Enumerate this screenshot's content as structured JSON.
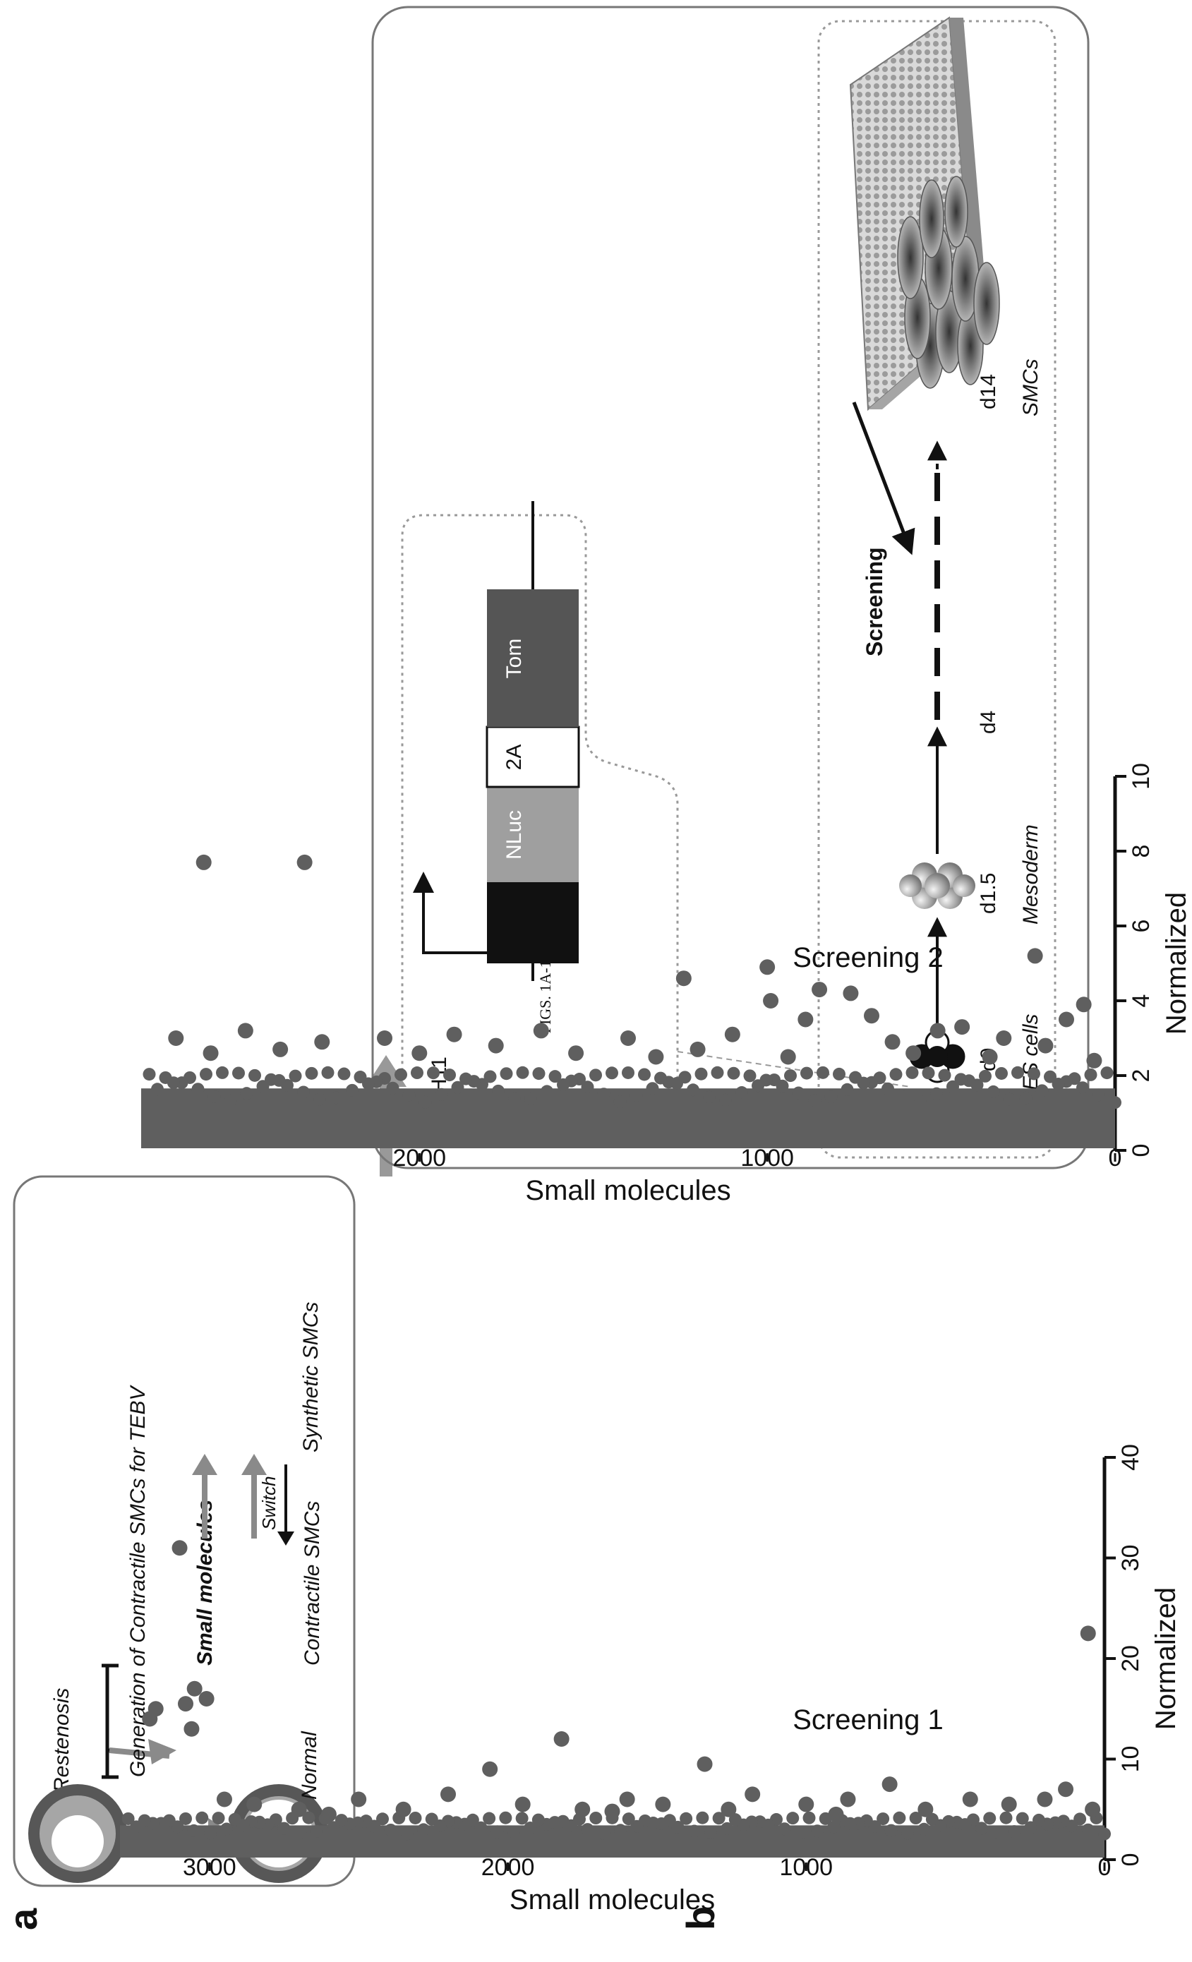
{
  "figure_title": "FIGS. 1A-1C",
  "panel_a": {
    "label": "a",
    "left_box": {
      "restenosis": "Restenosis",
      "normal": "Normal",
      "generation": "Generation of Contractile SMCs for TEBV",
      "small_molecules": "Small molecules",
      "contractile": "Contractile SMCs",
      "switch": "Switch",
      "synthetic": "Synthetic SMCs"
    },
    "right_box": {
      "gene": "MYH11",
      "nluc": "NLuc",
      "p2a": "2A",
      "tom": "Tom",
      "screening": "Screening",
      "stages": [
        {
          "day": "d0",
          "name": "ES cells"
        },
        {
          "day": "d1.5",
          "name": "Mesoderm"
        },
        {
          "day": "d4",
          "name": ""
        },
        {
          "day": "d14",
          "name": "SMCs"
        }
      ]
    }
  },
  "panel_b": {
    "label": "b"
  },
  "chart_data": [
    {
      "type": "scatter",
      "title": "Screening 1",
      "xlabel": "Small molecules",
      "ylabel": "Normalized",
      "xlim": [
        0,
        3300
      ],
      "ylim": [
        0,
        40
      ],
      "xticks": [
        0,
        1000,
        2000,
        3000
      ],
      "yticks": [
        0,
        10,
        20,
        30,
        40
      ],
      "color": "#5f5f5f",
      "baseline_band": [
        0,
        3.2
      ],
      "points": [
        [
          3100,
          31
        ],
        [
          3050,
          17
        ],
        [
          3010,
          16
        ],
        [
          3080,
          15.5
        ],
        [
          3180,
          15
        ],
        [
          3060,
          13
        ],
        [
          3200,
          14
        ],
        [
          1820,
          12
        ],
        [
          2060,
          9
        ],
        [
          1340,
          9.5
        ],
        [
          720,
          7.5
        ],
        [
          55,
          22.5
        ],
        [
          130,
          7
        ],
        [
          40,
          5
        ],
        [
          200,
          6
        ],
        [
          320,
          5.5
        ],
        [
          450,
          6
        ],
        [
          600,
          5
        ],
        [
          860,
          6
        ],
        [
          1000,
          5.5
        ],
        [
          1180,
          6.5
        ],
        [
          1260,
          5
        ],
        [
          1480,
          5.5
        ],
        [
          1600,
          6
        ],
        [
          1750,
          5
        ],
        [
          1950,
          5.5
        ],
        [
          2200,
          6.5
        ],
        [
          2350,
          5
        ],
        [
          2500,
          6
        ],
        [
          2700,
          5
        ],
        [
          2850,
          5.5
        ],
        [
          2950,
          6
        ],
        [
          900,
          4.5
        ],
        [
          1650,
          4.8
        ],
        [
          2600,
          4.5
        ]
      ]
    },
    {
      "type": "scatter",
      "title": "Screening 2",
      "xlabel": "Small molecules",
      "ylabel": "Normalized",
      "xlim": [
        0,
        2800
      ],
      "ylim": [
        0,
        10
      ],
      "xticks": [
        0,
        1000,
        2000
      ],
      "yticks": [
        0,
        2,
        4,
        6,
        8,
        10
      ],
      "color": "#5f5f5f",
      "baseline_band": [
        0,
        1.6
      ],
      "points": [
        [
          2330,
          7.7
        ],
        [
          2620,
          7.7
        ],
        [
          230,
          5.2
        ],
        [
          1240,
          4.6
        ],
        [
          760,
          4.2
        ],
        [
          850,
          4.3
        ],
        [
          1000,
          4.9
        ],
        [
          700,
          3.6
        ],
        [
          890,
          3.5
        ],
        [
          990,
          4.0
        ],
        [
          440,
          3.3
        ],
        [
          510,
          3.2
        ],
        [
          640,
          2.9
        ],
        [
          90,
          3.9
        ],
        [
          140,
          3.5
        ],
        [
          200,
          2.8
        ],
        [
          320,
          3.0
        ],
        [
          1100,
          3.1
        ],
        [
          1400,
          3.0
        ],
        [
          1650,
          3.2
        ],
        [
          1900,
          3.1
        ],
        [
          2100,
          3.0
        ],
        [
          2280,
          2.9
        ],
        [
          2500,
          3.2
        ],
        [
          2700,
          3.0
        ],
        [
          360,
          2.5
        ],
        [
          580,
          2.6
        ],
        [
          1200,
          2.7
        ],
        [
          1550,
          2.6
        ],
        [
          1780,
          2.8
        ],
        [
          2000,
          2.6
        ],
        [
          2400,
          2.7
        ],
        [
          2600,
          2.6
        ],
        [
          60,
          2.4
        ],
        [
          940,
          2.5
        ],
        [
          1320,
          2.5
        ]
      ]
    }
  ]
}
